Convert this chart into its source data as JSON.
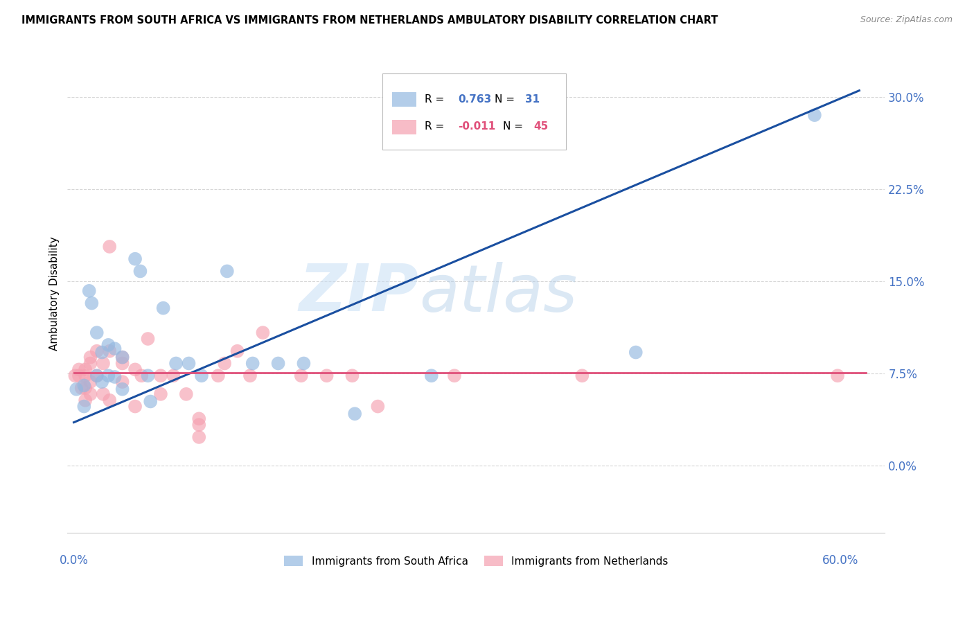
{
  "title": "IMMIGRANTS FROM SOUTH AFRICA VS IMMIGRANTS FROM NETHERLANDS AMBULATORY DISABILITY CORRELATION CHART",
  "source": "Source: ZipAtlas.com",
  "ylabel": "Ambulatory Disability",
  "y_ticks": [
    0.0,
    0.075,
    0.15,
    0.225,
    0.3
  ],
  "y_tick_labels": [
    "0.0%",
    "7.5%",
    "15.0%",
    "22.5%",
    "30.0%"
  ],
  "xlim": [
    -0.005,
    0.635
  ],
  "ylim": [
    -0.055,
    0.335
  ],
  "blue_R": 0.763,
  "blue_N": 31,
  "pink_R": -0.011,
  "pink_N": 45,
  "blue_scatter_x": [
    0.002,
    0.008,
    0.008,
    0.012,
    0.014,
    0.018,
    0.018,
    0.022,
    0.022,
    0.027,
    0.027,
    0.032,
    0.032,
    0.038,
    0.038,
    0.048,
    0.052,
    0.058,
    0.06,
    0.07,
    0.08,
    0.09,
    0.1,
    0.12,
    0.14,
    0.16,
    0.18,
    0.22,
    0.28,
    0.44,
    0.58
  ],
  "blue_scatter_y": [
    0.062,
    0.065,
    0.048,
    0.142,
    0.132,
    0.108,
    0.073,
    0.092,
    0.068,
    0.098,
    0.073,
    0.095,
    0.072,
    0.088,
    0.062,
    0.168,
    0.158,
    0.073,
    0.052,
    0.128,
    0.083,
    0.083,
    0.073,
    0.158,
    0.083,
    0.083,
    0.083,
    0.042,
    0.073,
    0.092,
    0.285
  ],
  "pink_scatter_x": [
    0.001,
    0.004,
    0.004,
    0.006,
    0.009,
    0.009,
    0.009,
    0.009,
    0.013,
    0.013,
    0.013,
    0.013,
    0.018,
    0.018,
    0.023,
    0.023,
    0.028,
    0.028,
    0.028,
    0.038,
    0.038,
    0.038,
    0.048,
    0.048,
    0.053,
    0.058,
    0.068,
    0.068,
    0.078,
    0.088,
    0.098,
    0.098,
    0.098,
    0.113,
    0.118,
    0.128,
    0.138,
    0.148,
    0.178,
    0.198,
    0.218,
    0.238,
    0.298,
    0.398,
    0.598
  ],
  "pink_scatter_y": [
    0.073,
    0.078,
    0.073,
    0.063,
    0.078,
    0.073,
    0.063,
    0.053,
    0.088,
    0.083,
    0.068,
    0.058,
    0.093,
    0.073,
    0.083,
    0.058,
    0.178,
    0.093,
    0.053,
    0.088,
    0.083,
    0.068,
    0.078,
    0.048,
    0.073,
    0.103,
    0.073,
    0.058,
    0.073,
    0.058,
    0.038,
    0.033,
    0.023,
    0.073,
    0.083,
    0.093,
    0.073,
    0.108,
    0.073,
    0.073,
    0.073,
    0.048,
    0.073,
    0.073,
    0.073
  ],
  "blue_line_x_start": 0.0,
  "blue_line_x_end": 0.615,
  "blue_line_y_start": 0.035,
  "blue_line_y_end": 0.305,
  "pink_line_y": 0.0755,
  "blue_color": "#93b8e0",
  "blue_line_color": "#1a4fa0",
  "pink_color": "#f5a0b0",
  "pink_line_color": "#e0507a",
  "background_color": "#ffffff",
  "grid_color": "#cccccc",
  "watermark_zip": "ZIP",
  "watermark_atlas": "atlas",
  "legend_label_blue": "Immigrants from South Africa",
  "legend_label_pink": "Immigrants from Netherlands"
}
